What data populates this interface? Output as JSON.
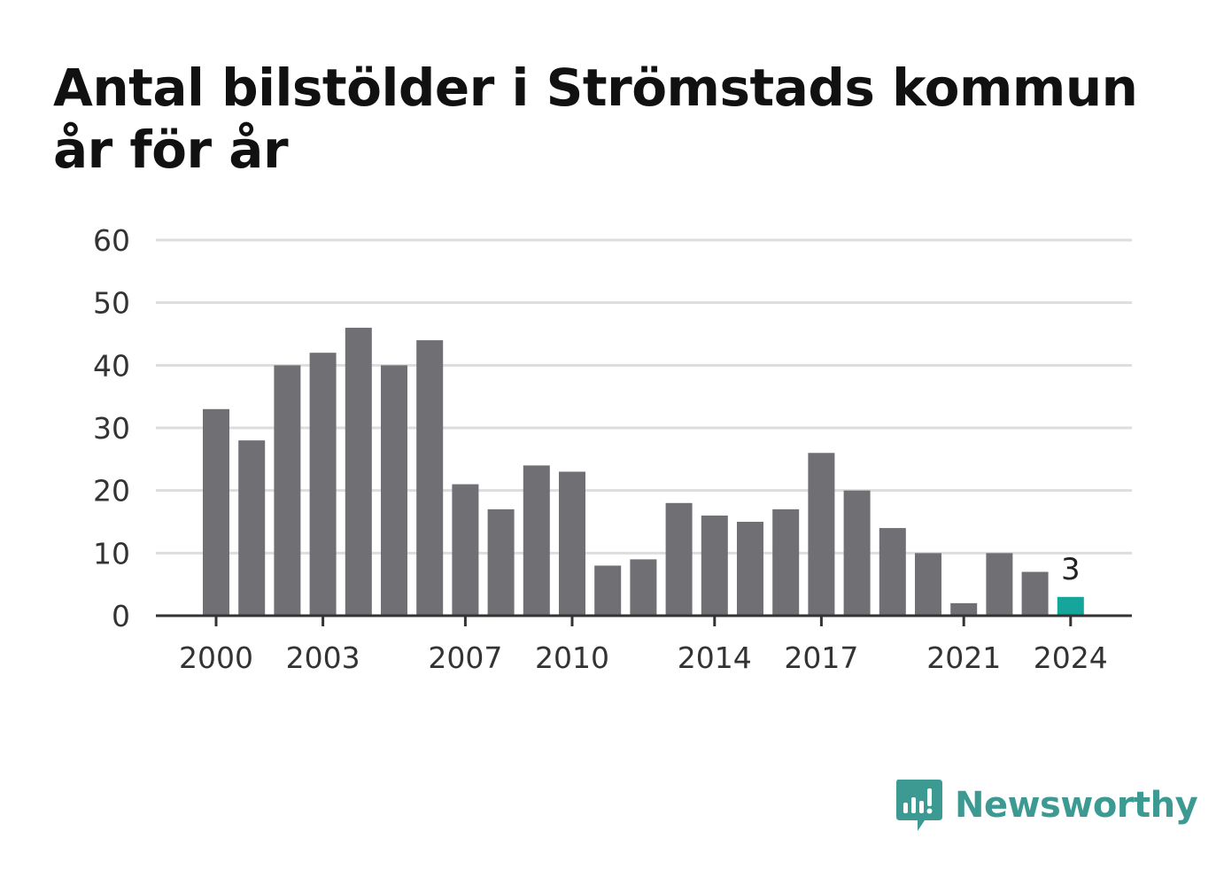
{
  "title": "Antal bilstölder i Strömstads kommun år för år",
  "chart_data": {
    "type": "bar",
    "title": "Antal bilstölder i Strömstads kommun år för år",
    "xlabel": "",
    "ylabel": "",
    "categories": [
      "2000",
      "2001",
      "2002",
      "2003",
      "2004",
      "2005",
      "2006",
      "2007",
      "2008",
      "2009",
      "2010",
      "2011",
      "2012",
      "2013",
      "2014",
      "2015",
      "2016",
      "2017",
      "2018",
      "2019",
      "2020",
      "2021",
      "2022",
      "2023",
      "2024"
    ],
    "values": [
      33,
      28,
      40,
      42,
      46,
      40,
      44,
      21,
      17,
      24,
      23,
      8,
      9,
      18,
      16,
      15,
      17,
      26,
      20,
      14,
      10,
      2,
      10,
      7,
      3
    ],
    "x_tick_labels": [
      "2000",
      "2003",
      "2007",
      "2010",
      "2014",
      "2017",
      "2021",
      "2024"
    ],
    "y_ticks": [
      0,
      10,
      20,
      30,
      40,
      50,
      60
    ],
    "ylim": [
      0,
      60
    ],
    "grid": true,
    "highlight_category": "2024",
    "data_labels": [
      {
        "category": "2024",
        "text": "3"
      }
    ],
    "colors": {
      "bar": "#706f74",
      "highlight": "#16a59a",
      "grid": "#dddddd",
      "axis": "#333333"
    }
  },
  "brand": {
    "name": "Newsworthy",
    "icon": "newsworthy-logo-icon",
    "color": "#3c9a92"
  }
}
